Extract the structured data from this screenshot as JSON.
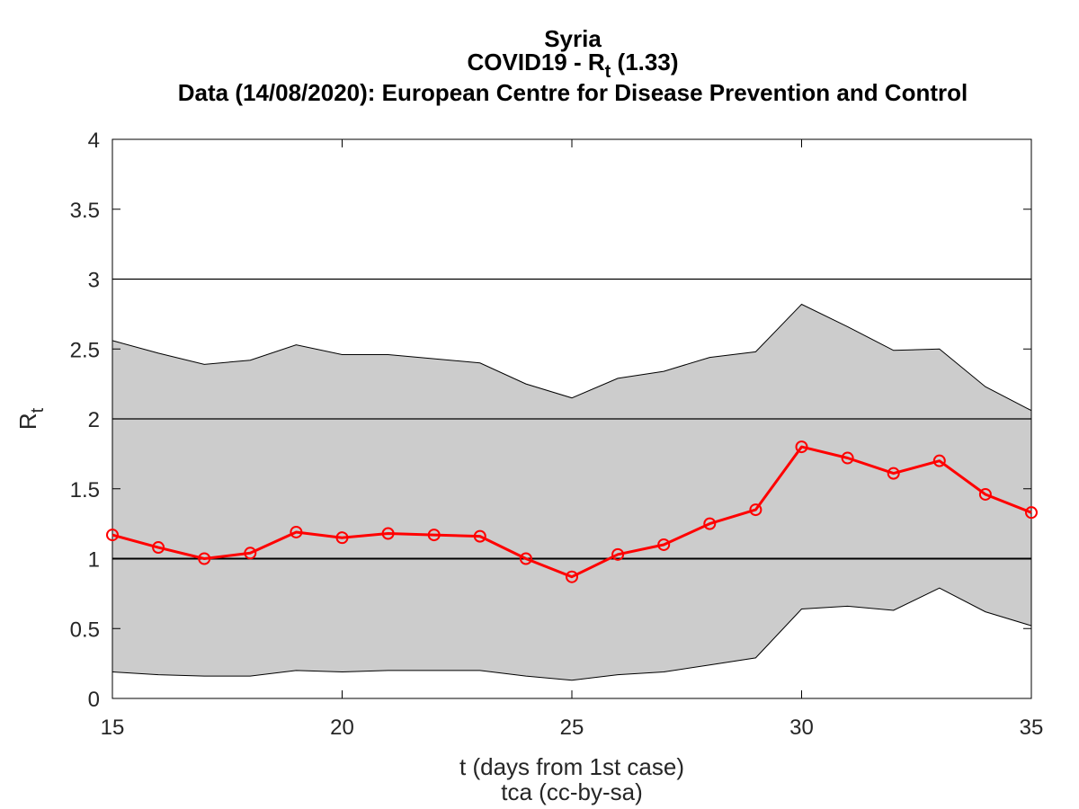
{
  "chart_data": {
    "type": "line",
    "title": "Syria",
    "subtitle_main": "COVID19 - R",
    "subtitle_sub": "t",
    "subtitle_value": " (1.33)",
    "subtitle2": "Data (14/08/2020): European Centre for Disease Prevention and Control",
    "xlabel": "t (days from 1st case)",
    "credit": "tca (cc-by-sa)",
    "ylabel_main": "R",
    "ylabel_sub": "t",
    "xlim": [
      15,
      35
    ],
    "ylim": [
      0,
      4
    ],
    "xticks": [
      15,
      20,
      25,
      30,
      35
    ],
    "yticks": [
      0,
      0.5,
      1,
      1.5,
      2,
      2.5,
      3,
      3.5,
      4
    ],
    "reference_lines": [
      1,
      2,
      3
    ],
    "grid": false,
    "x": [
      15,
      16,
      17,
      18,
      19,
      20,
      21,
      22,
      23,
      24,
      25,
      26,
      27,
      28,
      29,
      30,
      31,
      32,
      33,
      34,
      35
    ],
    "series": [
      {
        "values": [
          1.17,
          1.08,
          1.0,
          1.04,
          1.19,
          1.15,
          1.18,
          1.17,
          1.16,
          1.0,
          0.87,
          1.03,
          1.1,
          1.25,
          1.35,
          1.8,
          1.72,
          1.61,
          1.7,
          1.46,
          1.33
        ],
        "color": "#ff0000",
        "marker": "circle"
      }
    ],
    "band": {
      "upper": [
        2.56,
        2.47,
        2.39,
        2.42,
        2.53,
        2.46,
        2.46,
        2.43,
        2.4,
        2.25,
        2.15,
        2.29,
        2.34,
        2.44,
        2.48,
        2.82,
        2.66,
        2.49,
        2.5,
        2.23,
        2.06
      ],
      "lower": [
        0.19,
        0.17,
        0.16,
        0.16,
        0.2,
        0.19,
        0.2,
        0.2,
        0.2,
        0.16,
        0.13,
        0.17,
        0.19,
        0.24,
        0.29,
        0.64,
        0.66,
        0.63,
        0.79,
        0.62,
        0.52
      ],
      "color": "#cccccc"
    }
  }
}
